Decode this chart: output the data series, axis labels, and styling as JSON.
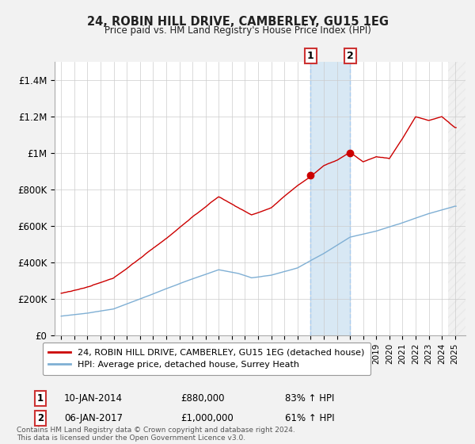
{
  "title": "24, ROBIN HILL DRIVE, CAMBERLEY, GU15 1EG",
  "subtitle": "Price paid vs. HM Land Registry's House Price Index (HPI)",
  "line1_label": "24, ROBIN HILL DRIVE, CAMBERLEY, GU15 1EG (detached house)",
  "line2_label": "HPI: Average price, detached house, Surrey Heath",
  "line1_color": "#cc0000",
  "line2_color": "#7fafd4",
  "annotation1_date": "10-JAN-2014",
  "annotation1_price": "£880,000",
  "annotation1_hpi": "83% ↑ HPI",
  "annotation2_date": "06-JAN-2017",
  "annotation2_price": "£1,000,000",
  "annotation2_hpi": "61% ↑ HPI",
  "ylabel_ticks": [
    "£0",
    "£200K",
    "£400K",
    "£600K",
    "£800K",
    "£1M",
    "£1.2M",
    "£1.4M"
  ],
  "ytick_vals": [
    0,
    200000,
    400000,
    600000,
    800000,
    1000000,
    1200000,
    1400000
  ],
  "ylim": [
    0,
    1500000
  ],
  "xlim_left": 1994.5,
  "xlim_right": 2025.8,
  "sale1_year": 2014.03,
  "sale1_price": 880000,
  "sale2_year": 2017.03,
  "sale2_price": 1000000,
  "footer": "Contains HM Land Registry data © Crown copyright and database right 2024.\nThis data is licensed under the Open Government Licence v3.0.",
  "background_color": "#f2f2f2",
  "plot_background": "#ffffff",
  "grid_color": "#cccccc",
  "shade_color": "#d8e8f4",
  "hatch_color": "#dddddd",
  "dashed_color": "#aaccee"
}
